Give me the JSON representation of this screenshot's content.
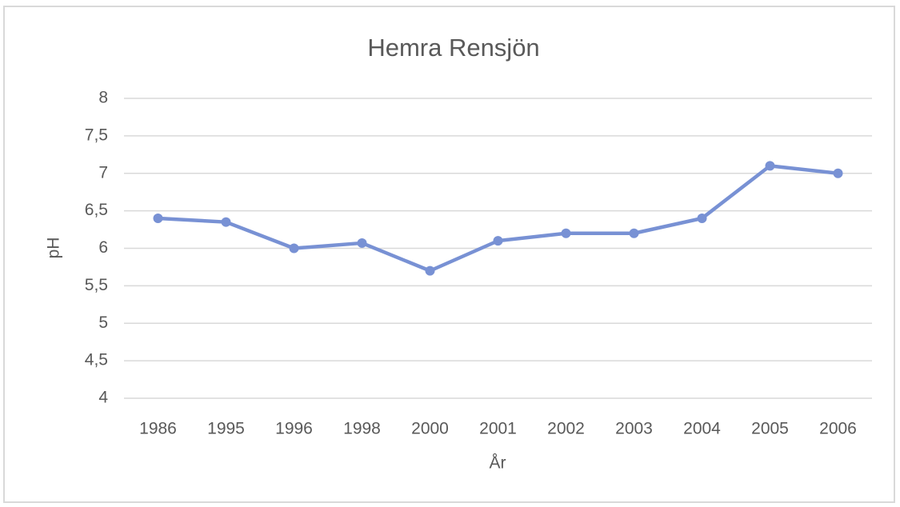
{
  "chart_data": {
    "type": "line",
    "title": "Hemra Rensjön",
    "x_label": "År",
    "y_label": "pH",
    "categories": [
      "1986",
      "1995",
      "1996",
      "1998",
      "2000",
      "2001",
      "2002",
      "2003",
      "2004",
      "2005",
      "2006"
    ],
    "series": [
      {
        "name": "pH",
        "color": "#7891d4",
        "values": [
          6.4,
          6.35,
          6.0,
          6.07,
          5.7,
          6.1,
          6.2,
          6.2,
          6.4,
          7.1,
          7.0
        ]
      }
    ],
    "ylim": [
      4,
      8
    ],
    "yticks": [
      4,
      {
        "value": 4.5,
        "label": "4,5"
      },
      5,
      {
        "value": 5.5,
        "label": "5,5"
      },
      6,
      {
        "value": 6.5,
        "label": "6,5"
      },
      7,
      {
        "value": 7.5,
        "label": "7,5"
      },
      8
    ],
    "grid": true
  }
}
